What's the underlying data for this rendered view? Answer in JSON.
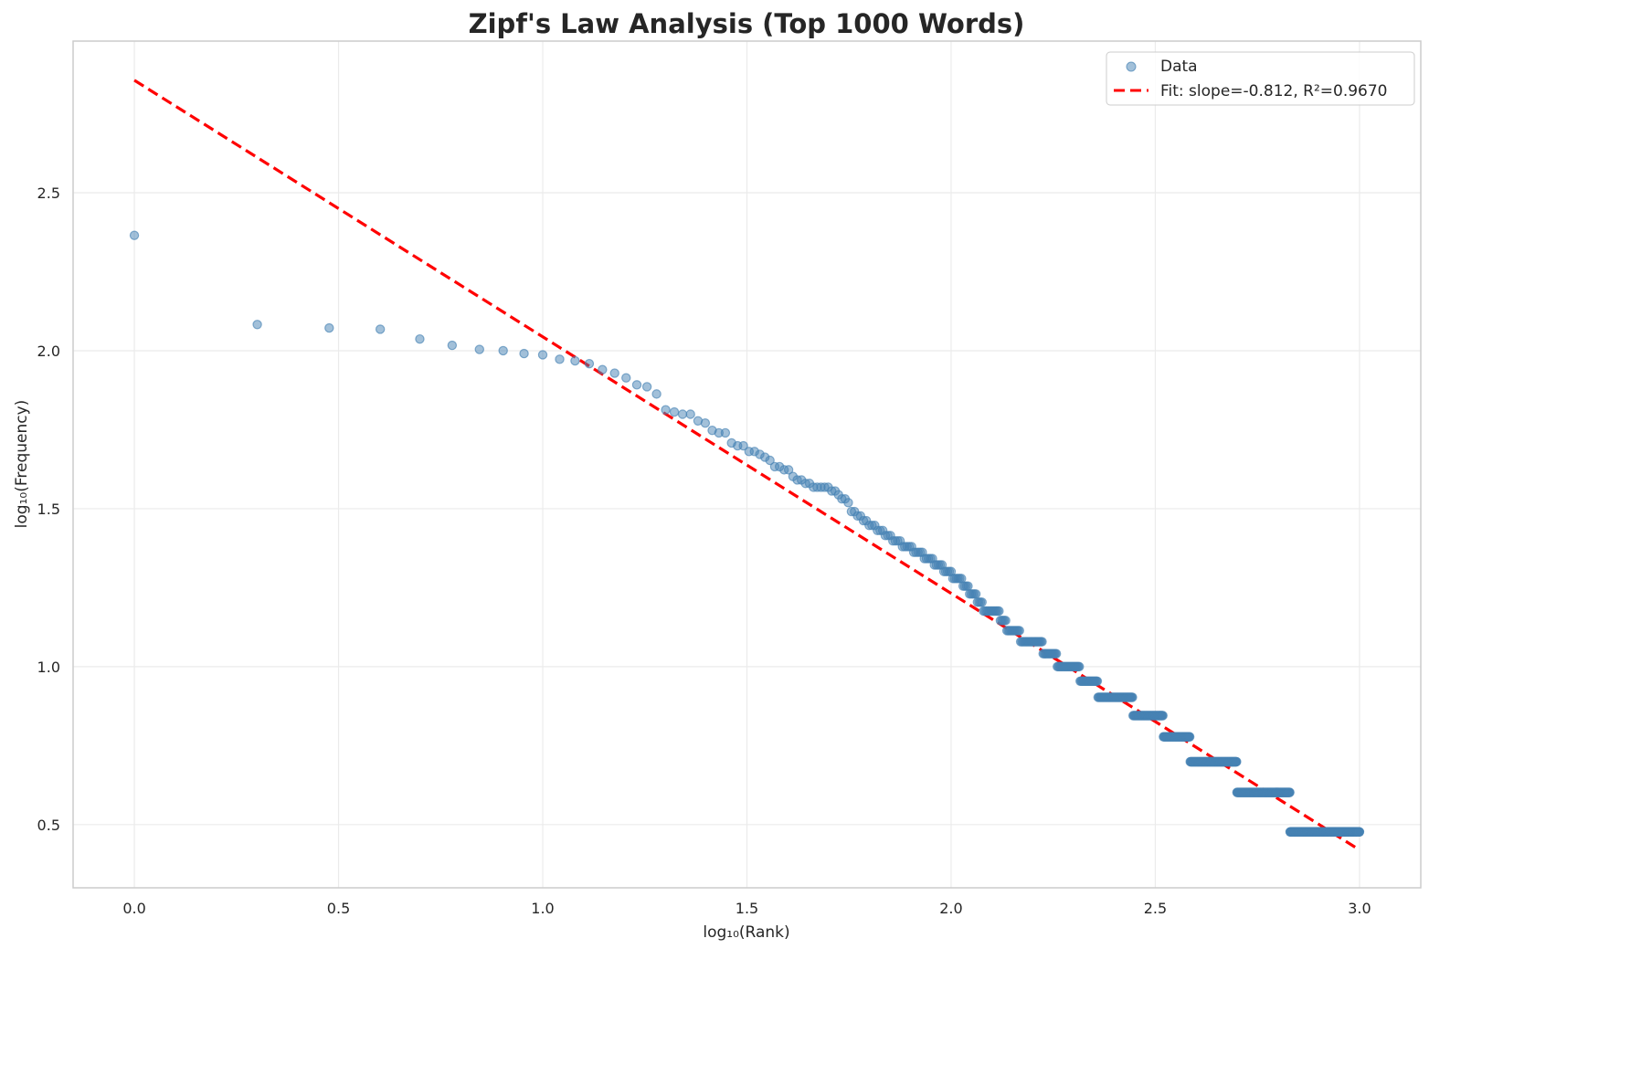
{
  "chart_data": {
    "type": "scatter",
    "title": "Zipf's Law Analysis (Top 1000 Words)",
    "xlabel": "log₁₀(Rank)",
    "ylabel": "log₁₀(Frequency)",
    "xlim": [
      -0.15,
      3.15
    ],
    "ylim": [
      0.3,
      2.98
    ],
    "xticks": [
      0.0,
      0.5,
      1.0,
      1.5,
      2.0,
      2.5,
      3.0
    ],
    "xtick_labels": [
      "0.0",
      "0.5",
      "1.0",
      "1.5",
      "2.0",
      "2.5",
      "3.0"
    ],
    "yticks": [
      0.5,
      1.0,
      1.5,
      2.0,
      2.5
    ],
    "ytick_labels": [
      "0.5",
      "1.0",
      "1.5",
      "2.0",
      "2.5"
    ],
    "grid": true,
    "legend_position": "top-right",
    "series": [
      {
        "name": "Data",
        "kind": "scatter",
        "color": "#4682b4",
        "point_runs_rank_from_rank_to_logfreq": [
          [
            1,
            1,
            2.365
          ],
          [
            2,
            2,
            2.083
          ],
          [
            3,
            3,
            2.072
          ],
          [
            4,
            4,
            2.068
          ],
          [
            5,
            5,
            2.037
          ],
          [
            6,
            6,
            2.017
          ],
          [
            7,
            7,
            2.004
          ],
          [
            8,
            8,
            2.0
          ],
          [
            9,
            9,
            1.991
          ],
          [
            10,
            10,
            1.987
          ],
          [
            11,
            11,
            1.973
          ],
          [
            12,
            12,
            1.968
          ],
          [
            13,
            13,
            1.959
          ],
          [
            14,
            14,
            1.94
          ],
          [
            15,
            15,
            1.929
          ],
          [
            16,
            16,
            1.914
          ],
          [
            17,
            17,
            1.892
          ],
          [
            18,
            18,
            1.886
          ],
          [
            19,
            19,
            1.863
          ],
          [
            20,
            20,
            1.813
          ],
          [
            21,
            21,
            1.806
          ],
          [
            22,
            23,
            1.799
          ],
          [
            24,
            24,
            1.778
          ],
          [
            25,
            25,
            1.771
          ],
          [
            26,
            26,
            1.748
          ],
          [
            27,
            28,
            1.74
          ],
          [
            29,
            29,
            1.708
          ],
          [
            30,
            31,
            1.699
          ],
          [
            32,
            33,
            1.681
          ],
          [
            34,
            34,
            1.672
          ],
          [
            35,
            35,
            1.663
          ],
          [
            36,
            36,
            1.653
          ],
          [
            37,
            38,
            1.633
          ],
          [
            39,
            40,
            1.623
          ],
          [
            41,
            41,
            1.602
          ],
          [
            42,
            43,
            1.591
          ],
          [
            44,
            45,
            1.58
          ],
          [
            46,
            50,
            1.568
          ],
          [
            51,
            52,
            1.556
          ],
          [
            53,
            53,
            1.544
          ],
          [
            54,
            55,
            1.531
          ],
          [
            56,
            56,
            1.519
          ],
          [
            57,
            58,
            1.491
          ],
          [
            59,
            60,
            1.477
          ],
          [
            61,
            62,
            1.462
          ],
          [
            63,
            65,
            1.447
          ],
          [
            66,
            68,
            1.431
          ],
          [
            69,
            71,
            1.415
          ],
          [
            72,
            75,
            1.398
          ],
          [
            76,
            80,
            1.38
          ],
          [
            81,
            85,
            1.362
          ],
          [
            86,
            90,
            1.342
          ],
          [
            91,
            95,
            1.322
          ],
          [
            96,
            100,
            1.301
          ],
          [
            101,
            106,
            1.279
          ],
          [
            107,
            110,
            1.255
          ],
          [
            111,
            115,
            1.23
          ],
          [
            116,
            119,
            1.204
          ],
          [
            120,
            131,
            1.176
          ],
          [
            132,
            136,
            1.146
          ],
          [
            137,
            147,
            1.114
          ],
          [
            148,
            167,
            1.079
          ],
          [
            168,
            181,
            1.041
          ],
          [
            182,
            206,
            1.0
          ],
          [
            207,
            228,
            0.954
          ],
          [
            229,
            278,
            0.903
          ],
          [
            279,
            330,
            0.845
          ],
          [
            331,
            384,
            0.778
          ],
          [
            385,
            500,
            0.699
          ],
          [
            501,
            675,
            0.602
          ],
          [
            676,
            1000,
            0.477
          ]
        ]
      },
      {
        "name": "Fit: slope=-0.812, R²=0.9670",
        "kind": "line",
        "style": "dashed",
        "color": "#ff0000",
        "slope": -0.812,
        "intercept": 2.856,
        "x_range": [
          0.0,
          3.0
        ]
      }
    ]
  }
}
